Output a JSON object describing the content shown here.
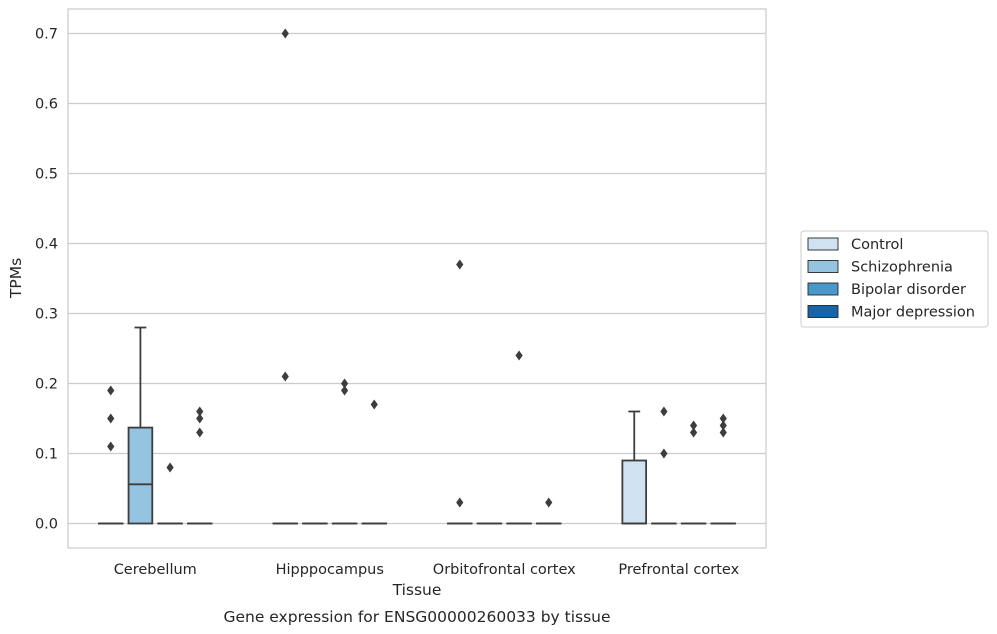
{
  "chart_data": {
    "type": "box",
    "xlabel": "Tissue",
    "ylabel": "TPMs",
    "caption": "Gene expression for ENSG00000260033 by tissue",
    "categories": [
      "Cerebellum",
      "Hipppocampus",
      "Orbitofrontal cortex",
      "Prefrontal cortex"
    ],
    "ylim": [
      -0.035,
      0.735
    ],
    "yticks": [
      0.0,
      0.1,
      0.2,
      0.3,
      0.4,
      0.5,
      0.6,
      0.7
    ],
    "ytick_labels": [
      "0.0",
      "0.1",
      "0.2",
      "0.3",
      "0.4",
      "0.5",
      "0.6",
      "0.7"
    ],
    "grid": "horizontal",
    "legend_position": "right",
    "series": [
      {
        "name": "Control",
        "color": "#d0e1f2",
        "boxes": [
          {
            "q1": 0,
            "median": 0,
            "q3": 0,
            "whisker_low": 0,
            "whisker_high": 0,
            "outliers": [
              0.11,
              0.15,
              0.19
            ]
          },
          {
            "q1": 0,
            "median": 0,
            "q3": 0,
            "whisker_low": 0,
            "whisker_high": 0,
            "outliers": [
              0.21,
              0.7
            ]
          },
          {
            "q1": 0,
            "median": 0,
            "q3": 0,
            "whisker_low": 0,
            "whisker_high": 0,
            "outliers": [
              0.03,
              0.37
            ]
          },
          {
            "q1": 0,
            "median": 0,
            "q3": 0.09,
            "whisker_low": 0,
            "whisker_high": 0.16,
            "outliers": []
          }
        ]
      },
      {
        "name": "Schizophrenia",
        "color": "#94c4df",
        "boxes": [
          {
            "q1": 0,
            "median": 0.056,
            "q3": 0.137,
            "whisker_low": 0,
            "whisker_high": 0.28,
            "outliers": []
          },
          {
            "q1": 0,
            "median": 0,
            "q3": 0,
            "whisker_low": 0,
            "whisker_high": 0,
            "outliers": []
          },
          {
            "q1": 0,
            "median": 0,
            "q3": 0,
            "whisker_low": 0,
            "whisker_high": 0,
            "outliers": []
          },
          {
            "q1": 0,
            "median": 0,
            "q3": 0,
            "whisker_low": 0,
            "whisker_high": 0,
            "outliers": [
              0.1,
              0.16
            ]
          }
        ]
      },
      {
        "name": "Bipolar disorder",
        "color": "#4a98c9",
        "boxes": [
          {
            "q1": 0,
            "median": 0,
            "q3": 0,
            "whisker_low": 0,
            "whisker_high": 0,
            "outliers": [
              0.08
            ]
          },
          {
            "q1": 0,
            "median": 0,
            "q3": 0,
            "whisker_low": 0,
            "whisker_high": 0,
            "outliers": [
              0.19,
              0.2
            ]
          },
          {
            "q1": 0,
            "median": 0,
            "q3": 0,
            "whisker_low": 0,
            "whisker_high": 0,
            "outliers": [
              0.24
            ]
          },
          {
            "q1": 0,
            "median": 0,
            "q3": 0,
            "whisker_low": 0,
            "whisker_high": 0,
            "outliers": [
              0.13,
              0.14
            ]
          }
        ]
      },
      {
        "name": "Major depression",
        "color": "#1764ab",
        "boxes": [
          {
            "q1": 0,
            "median": 0,
            "q3": 0,
            "whisker_low": 0,
            "whisker_high": 0,
            "outliers": [
              0.13,
              0.15,
              0.16
            ]
          },
          {
            "q1": 0,
            "median": 0,
            "q3": 0,
            "whisker_low": 0,
            "whisker_high": 0,
            "outliers": [
              0.17
            ]
          },
          {
            "q1": 0,
            "median": 0,
            "q3": 0,
            "whisker_low": 0,
            "whisker_high": 0,
            "outliers": [
              0.03
            ]
          },
          {
            "q1": 0,
            "median": 0,
            "q3": 0,
            "whisker_low": 0,
            "whisker_high": 0,
            "outliers": [
              0.13,
              0.14,
              0.15
            ]
          }
        ]
      }
    ]
  }
}
